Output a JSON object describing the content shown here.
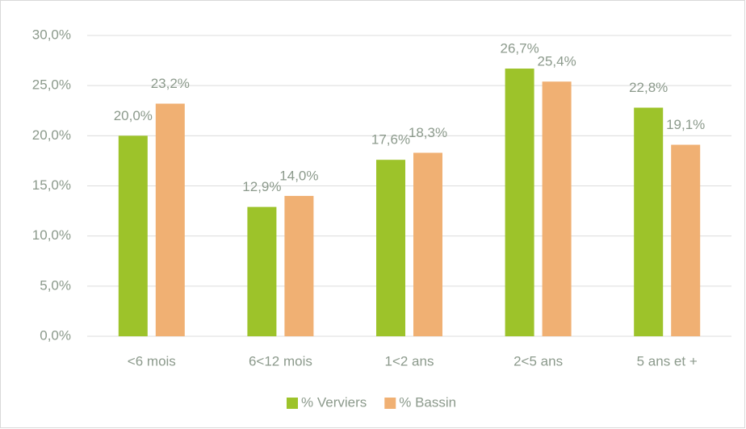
{
  "chart_data": {
    "type": "bar",
    "categories": [
      "<6 mois",
      "6<12 mois",
      "1<2 ans",
      "2<5 ans",
      "5 ans et +"
    ],
    "series": [
      {
        "name": "% Verviers",
        "color": "#9dc32a",
        "values": [
          20.0,
          12.9,
          17.6,
          26.7,
          22.8
        ],
        "value_labels": [
          "20,0%",
          "12,9%",
          "17,6%",
          "26,7%",
          "22,8%"
        ]
      },
      {
        "name": "% Bassin",
        "color": "#f0b073",
        "values": [
          23.2,
          14.0,
          18.3,
          25.4,
          19.1
        ],
        "value_labels": [
          "23,2%",
          "14,0%",
          "18,3%",
          "25,4%",
          "19,1%"
        ]
      }
    ],
    "ylim": [
      0,
      30
    ],
    "yticks": [
      {
        "value": 0,
        "label": "0,0%"
      },
      {
        "value": 5,
        "label": "5,0%"
      },
      {
        "value": 10,
        "label": "10,0%"
      },
      {
        "value": 15,
        "label": "15,0%"
      },
      {
        "value": 20,
        "label": "20,0%"
      },
      {
        "value": 25,
        "label": "25,0%"
      },
      {
        "value": 30,
        "label": "30,0%"
      }
    ],
    "grid": true,
    "legend": "bottom"
  }
}
